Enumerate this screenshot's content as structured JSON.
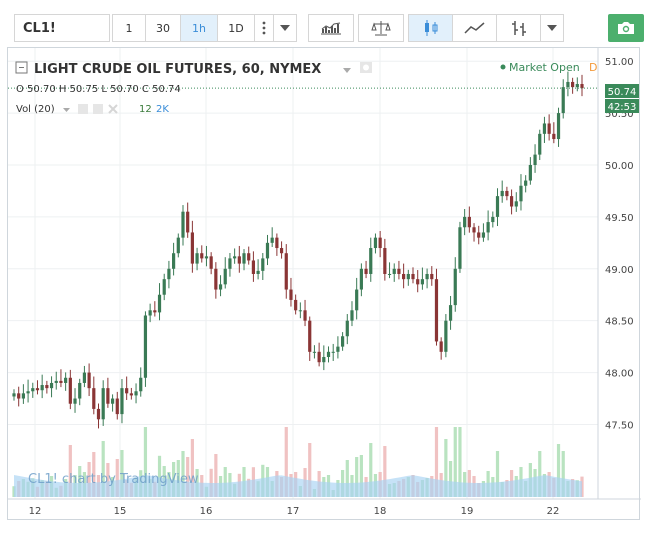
{
  "toolbar": {
    "symbol": "CL1!",
    "intervals": [
      "1",
      "30",
      "1h",
      "1D"
    ],
    "active_interval": "1h",
    "icons": [
      "more-vert-icon",
      "chevron-down-icon",
      "indicators-icon",
      "compare-scale-icon",
      "candles-icon",
      "area-chart-icon",
      "bar-chart-icon",
      "chevron-down-icon",
      "camera-icon"
    ]
  },
  "legend": {
    "title": "LIGHT CRUDE OIL FUTURES, 60, NYMEX",
    "ohlc": "O 50.70 H 50.75 L 50.70 C 50.74",
    "vol_label": "Vol (20)",
    "vol_values": [
      "12",
      "2K"
    ],
    "market_status": "Market Open",
    "market_status_code": "D"
  },
  "watermark": "CL1! chart by TradingView",
  "price_badge": {
    "price": "50.74",
    "countdown": "42:53"
  },
  "colors": {
    "up": "#3a7a55",
    "down": "#8a3535",
    "vol_up": "#b9e3c0",
    "vol_down": "#f0c2c2",
    "vol_ma": "#a7d3f2",
    "badge": "#3a8a5a",
    "grid": "#eef0f2"
  },
  "chart_data": {
    "type": "candlestick",
    "symbol": "CL1!",
    "interval": "60",
    "exchange": "NYMEX",
    "x_tick_labels": [
      "12",
      "15",
      "16",
      "17",
      "18",
      "19",
      "22"
    ],
    "y_tick_labels": [
      "51.00",
      "50.50",
      "50.00",
      "49.50",
      "49.00",
      "48.50",
      "48.00",
      "47.50"
    ],
    "ylim": [
      47.1,
      51.05
    ],
    "grid": true,
    "last_price": 50.74,
    "closes": [
      47.8,
      47.75,
      47.8,
      47.82,
      47.85,
      47.83,
      47.88,
      47.85,
      47.9,
      47.92,
      47.9,
      47.95,
      47.7,
      47.75,
      47.9,
      48.0,
      47.85,
      47.65,
      47.55,
      47.85,
      47.7,
      47.75,
      47.6,
      47.85,
      47.8,
      47.78,
      47.82,
      47.95,
      48.55,
      48.6,
      48.58,
      48.75,
      48.9,
      49.0,
      49.15,
      49.3,
      49.55,
      49.35,
      49.05,
      49.15,
      49.1,
      49.12,
      49.0,
      48.8,
      48.85,
      49.0,
      49.1,
      49.12,
      49.05,
      49.15,
      49.08,
      48.95,
      48.98,
      49.1,
      49.25,
      49.3,
      49.2,
      49.15,
      48.8,
      48.7,
      48.6,
      48.6,
      48.5,
      48.2,
      48.2,
      48.1,
      48.15,
      48.2,
      48.2,
      48.25,
      48.35,
      48.5,
      48.6,
      48.8,
      49.0,
      48.95,
      49.2,
      49.3,
      49.2,
      48.95,
      48.95,
      49.0,
      48.95,
      48.9,
      48.95,
      48.9,
      48.85,
      48.9,
      48.95,
      48.9,
      48.3,
      48.2,
      48.5,
      48.65,
      49.0,
      49.4,
      49.5,
      49.4,
      49.35,
      49.3,
      49.35,
      49.45,
      49.5,
      49.7,
      49.75,
      49.7,
      49.6,
      49.65,
      49.8,
      49.85,
      50.0,
      50.1,
      50.3,
      50.4,
      50.3,
      50.25,
      50.5,
      50.75,
      50.8,
      50.75,
      50.78,
      50.74
    ]
  }
}
